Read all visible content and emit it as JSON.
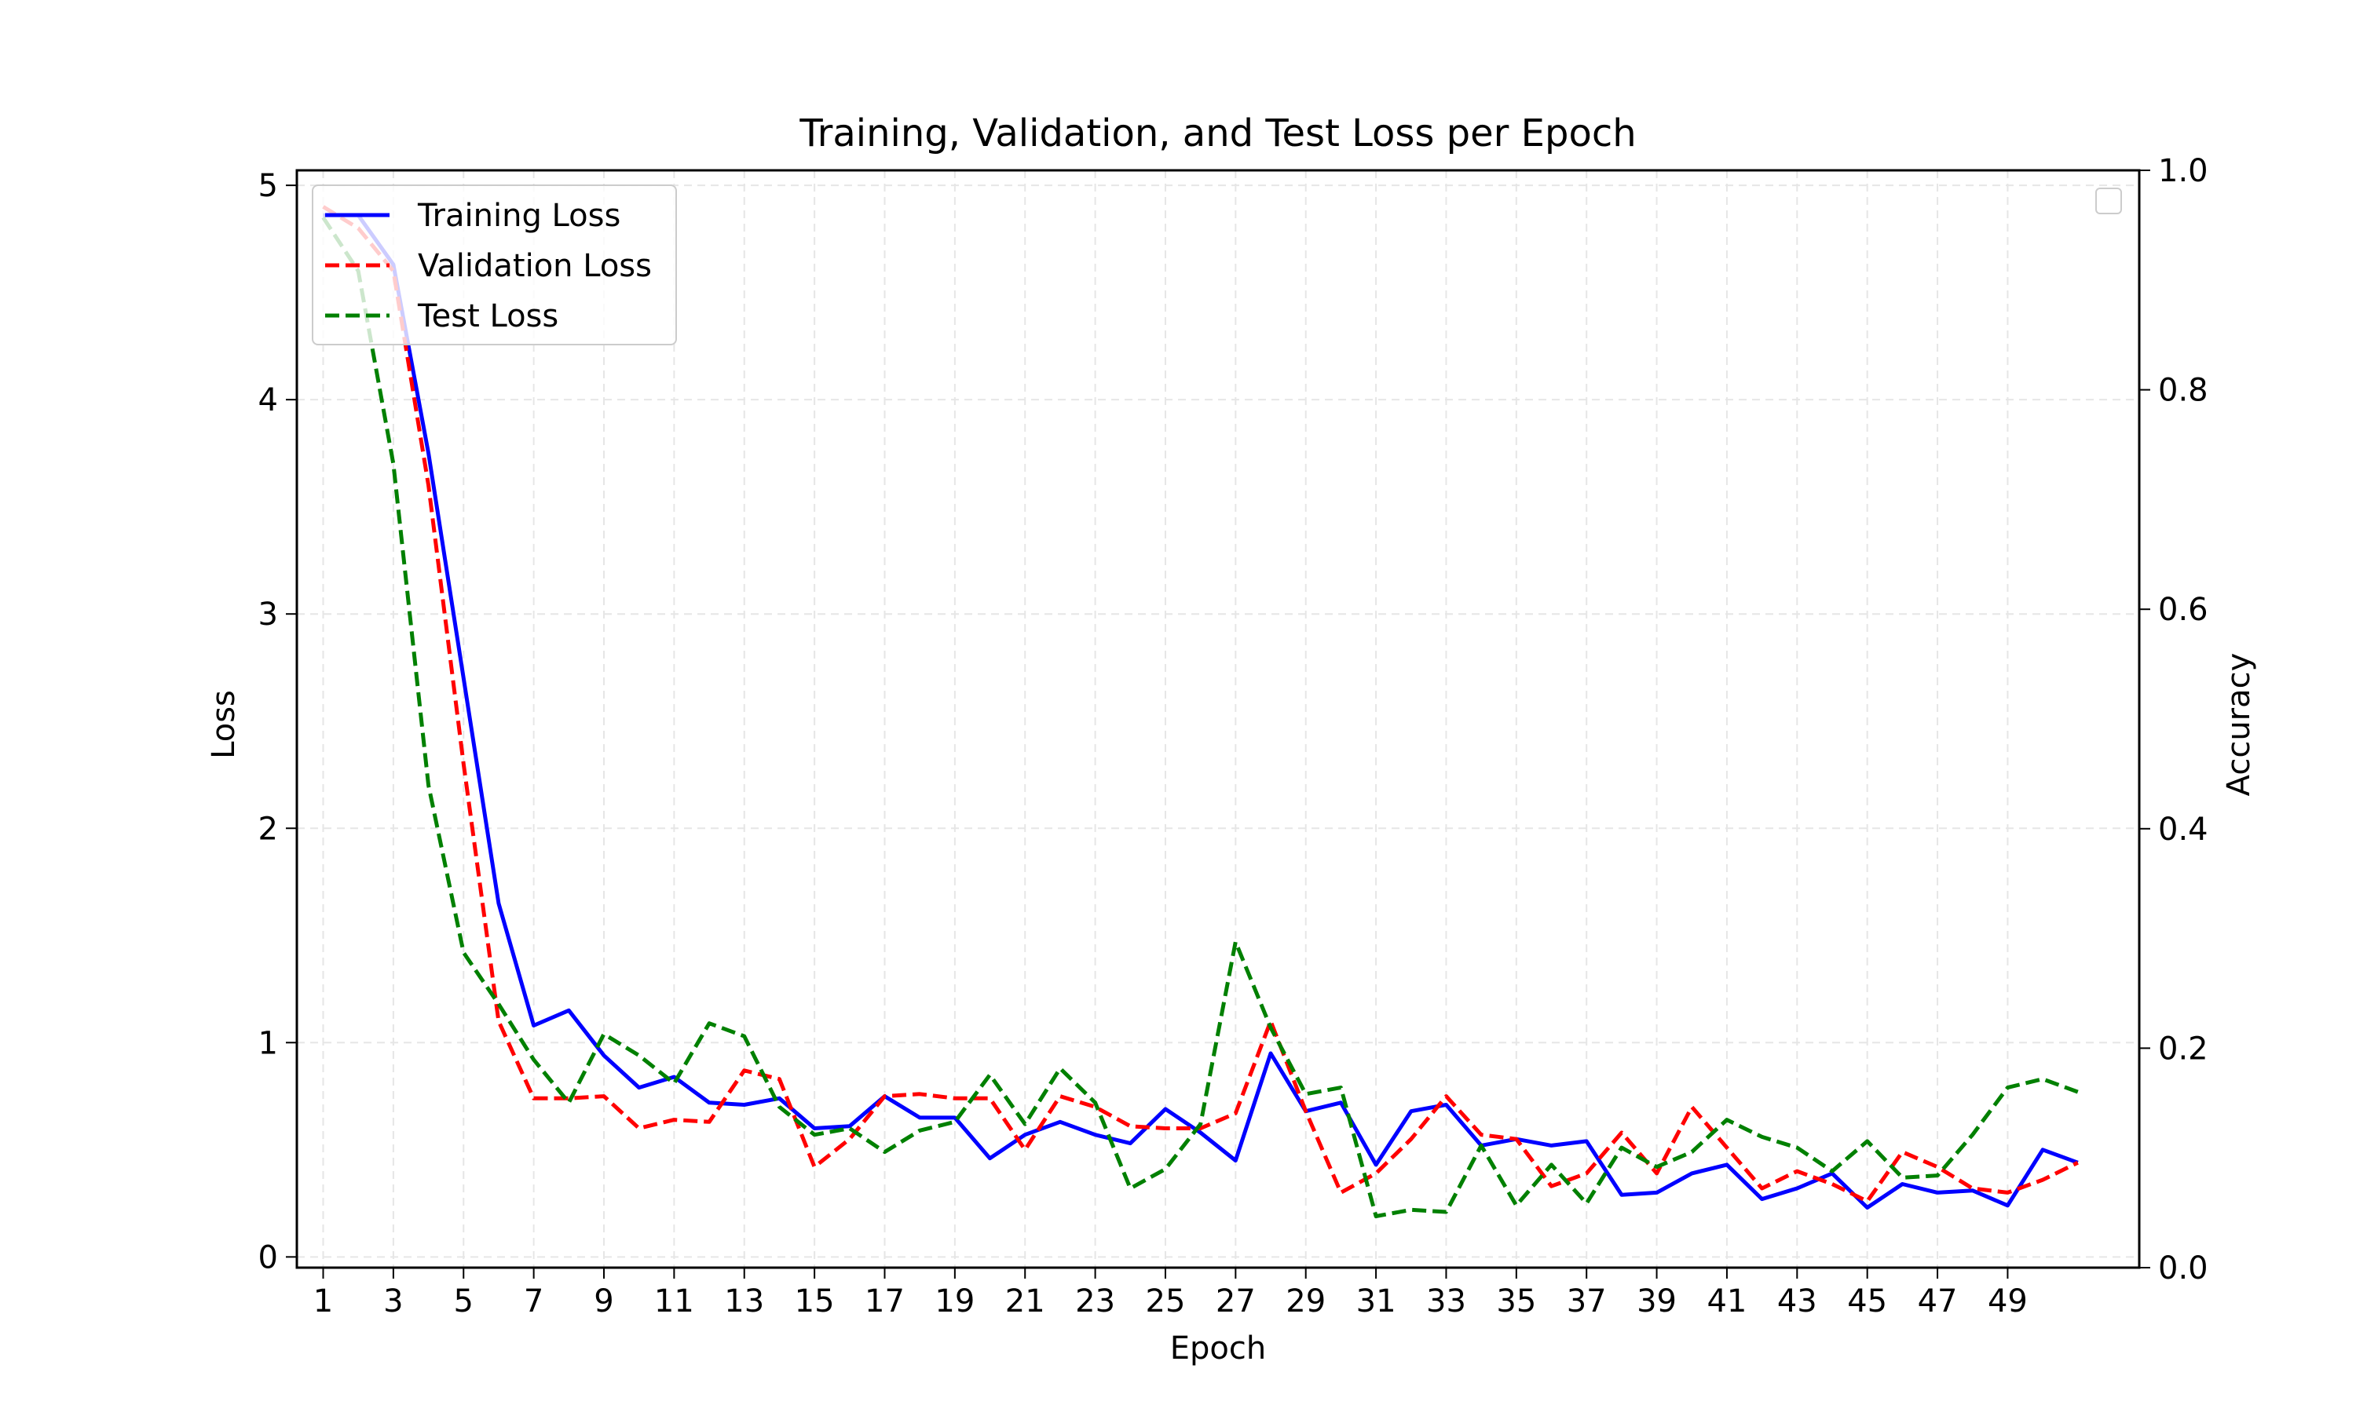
{
  "chart_data": {
    "type": "line",
    "title": "Training, Validation, and Test Loss per Epoch",
    "xlabel": "Epoch",
    "ylabel": "Loss",
    "ylabel_right": "Accuracy",
    "xlim": [
      0.25,
      52.75
    ],
    "ylim": [
      -0.05,
      5.07
    ],
    "ylim_right": [
      0.0,
      1.0
    ],
    "x_ticks": [
      1,
      3,
      5,
      7,
      9,
      11,
      13,
      15,
      17,
      19,
      21,
      23,
      25,
      27,
      29,
      31,
      33,
      35,
      37,
      39,
      41,
      43,
      45,
      47,
      49
    ],
    "y_ticks": [
      0,
      1,
      2,
      3,
      4,
      5
    ],
    "y_ticks_right": [
      "0.0",
      "0.2",
      "0.4",
      "0.6",
      "0.8",
      "1.0"
    ],
    "grid": true,
    "legend_position": "top-left",
    "x": [
      1,
      2,
      3,
      4,
      5,
      6,
      7,
      8,
      9,
      10,
      11,
      12,
      13,
      14,
      15,
      16,
      17,
      18,
      19,
      20,
      21,
      22,
      23,
      24,
      25,
      26,
      27,
      28,
      29,
      30,
      31,
      32,
      33,
      34,
      35,
      36,
      37,
      38,
      39,
      40,
      41,
      42,
      43,
      44,
      45,
      46,
      47,
      48,
      49,
      50,
      51
    ],
    "series": [
      {
        "name": "Training Loss",
        "color": "#0000ff",
        "style": "solid",
        "values": [
          4.86,
          4.86,
          4.63,
          3.75,
          2.7,
          1.65,
          1.08,
          1.15,
          0.94,
          0.79,
          0.84,
          0.72,
          0.71,
          0.74,
          0.6,
          0.61,
          0.75,
          0.65,
          0.65,
          0.46,
          0.57,
          0.63,
          0.57,
          0.53,
          0.69,
          0.58,
          0.45,
          0.95,
          0.68,
          0.72,
          0.43,
          0.68,
          0.71,
          0.52,
          0.55,
          0.52,
          0.54,
          0.29,
          0.3,
          0.39,
          0.43,
          0.27,
          0.32,
          0.39,
          0.23,
          0.34,
          0.3,
          0.31,
          0.24,
          0.5,
          0.44
        ]
      },
      {
        "name": "Validation Loss",
        "color": "#ff0000",
        "style": "dashed",
        "values": [
          4.9,
          4.8,
          4.6,
          3.6,
          2.3,
          1.1,
          0.74,
          0.74,
          0.75,
          0.6,
          0.64,
          0.63,
          0.87,
          0.83,
          0.42,
          0.55,
          0.75,
          0.76,
          0.74,
          0.74,
          0.5,
          0.75,
          0.7,
          0.61,
          0.6,
          0.6,
          0.67,
          1.1,
          0.68,
          0.3,
          0.39,
          0.55,
          0.75,
          0.57,
          0.55,
          0.33,
          0.39,
          0.58,
          0.39,
          0.7,
          0.51,
          0.32,
          0.4,
          0.34,
          0.26,
          0.49,
          0.42,
          0.32,
          0.3,
          0.36,
          0.44
        ]
      },
      {
        "name": "Test Loss",
        "color": "#008000",
        "style": "dashed",
        "values": [
          4.85,
          4.6,
          3.7,
          2.2,
          1.42,
          1.18,
          0.92,
          0.72,
          1.04,
          0.94,
          0.81,
          1.09,
          1.03,
          0.7,
          0.57,
          0.6,
          0.49,
          0.59,
          0.63,
          0.85,
          0.62,
          0.88,
          0.72,
          0.32,
          0.41,
          0.62,
          1.47,
          1.07,
          0.76,
          0.79,
          0.19,
          0.22,
          0.21,
          0.52,
          0.24,
          0.43,
          0.25,
          0.51,
          0.42,
          0.49,
          0.64,
          0.56,
          0.51,
          0.4,
          0.54,
          0.37,
          0.38,
          0.57,
          0.79,
          0.83,
          0.77
        ]
      }
    ]
  }
}
